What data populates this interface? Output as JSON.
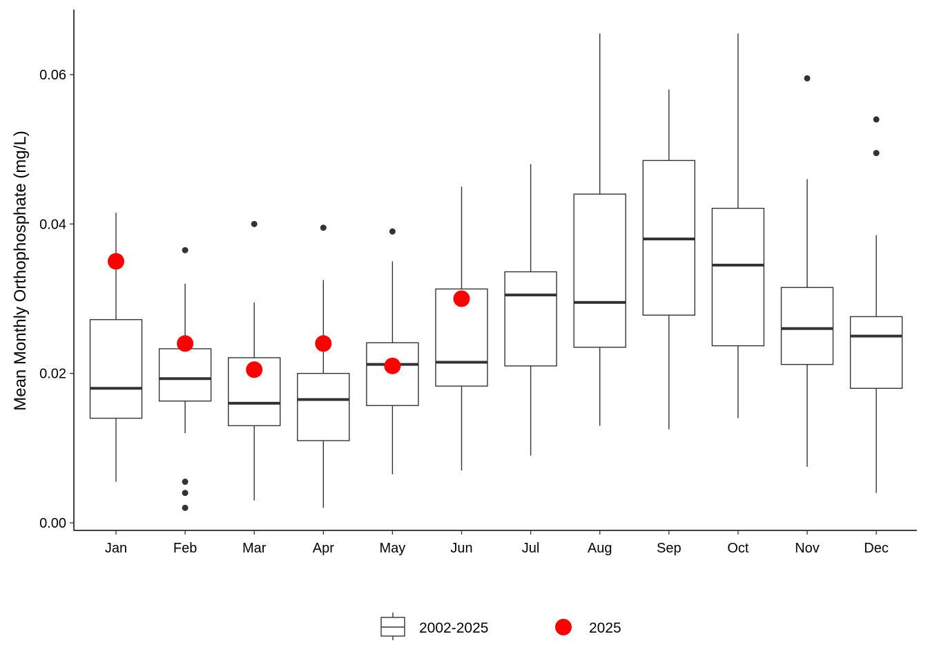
{
  "chart_data": {
    "type": "boxplot",
    "title": "",
    "xlabel": "",
    "ylabel": "Mean Monthly Orthophosphate (mg/L)",
    "ylim": [
      -0.0012,
      0.069
    ],
    "yticks": [
      0.0,
      0.02,
      0.04,
      0.06
    ],
    "ytick_labels": [
      "0.00",
      "0.02",
      "0.04",
      "0.06"
    ],
    "grid": false,
    "legend": {
      "placement": "bottom",
      "entries": [
        {
          "label": "2002-2025",
          "kind": "box"
        },
        {
          "label": "2025",
          "kind": "point",
          "color": "#ff0000"
        }
      ]
    },
    "colors": {
      "box_stroke": "#333333",
      "outlier": "#333333",
      "highlight": "#ff0000"
    },
    "categories": [
      "Jan",
      "Feb",
      "Mar",
      "Apr",
      "May",
      "Jun",
      "Jul",
      "Aug",
      "Sep",
      "Oct",
      "Nov",
      "Dec"
    ],
    "series": [
      {
        "name": "2002-2025",
        "boxes": [
          {
            "category": "Jan",
            "whisker_low": 0.0055,
            "q1": 0.014,
            "median": 0.018,
            "q3": 0.0272,
            "whisker_high": 0.0415,
            "outliers": []
          },
          {
            "category": "Feb",
            "whisker_low": 0.012,
            "q1": 0.0163,
            "median": 0.0193,
            "q3": 0.0233,
            "whisker_high": 0.032,
            "outliers": [
              0.0365,
              0.0055,
              0.004,
              0.002
            ]
          },
          {
            "category": "Mar",
            "whisker_low": 0.003,
            "q1": 0.013,
            "median": 0.016,
            "q3": 0.0221,
            "whisker_high": 0.0295,
            "outliers": [
              0.04
            ]
          },
          {
            "category": "Apr",
            "whisker_low": 0.002,
            "q1": 0.011,
            "median": 0.0165,
            "q3": 0.02,
            "whisker_high": 0.0325,
            "outliers": [
              0.0395
            ]
          },
          {
            "category": "May",
            "whisker_low": 0.0065,
            "q1": 0.0157,
            "median": 0.0212,
            "q3": 0.0241,
            "whisker_high": 0.035,
            "outliers": [
              0.039
            ]
          },
          {
            "category": "Jun",
            "whisker_low": 0.007,
            "q1": 0.0183,
            "median": 0.0215,
            "q3": 0.0313,
            "whisker_high": 0.045,
            "outliers": []
          },
          {
            "category": "Jul",
            "whisker_low": 0.009,
            "q1": 0.021,
            "median": 0.0305,
            "q3": 0.0336,
            "whisker_high": 0.048,
            "outliers": []
          },
          {
            "category": "Aug",
            "whisker_low": 0.013,
            "q1": 0.0235,
            "median": 0.0295,
            "q3": 0.044,
            "whisker_high": 0.0655,
            "outliers": []
          },
          {
            "category": "Sep",
            "whisker_low": 0.0125,
            "q1": 0.0278,
            "median": 0.038,
            "q3": 0.0485,
            "whisker_high": 0.058,
            "outliers": []
          },
          {
            "category": "Oct",
            "whisker_low": 0.014,
            "q1": 0.0237,
            "median": 0.0345,
            "q3": 0.0421,
            "whisker_high": 0.0655,
            "outliers": []
          },
          {
            "category": "Nov",
            "whisker_low": 0.0075,
            "q1": 0.0212,
            "median": 0.026,
            "q3": 0.0315,
            "whisker_high": 0.046,
            "outliers": [
              0.0595
            ]
          },
          {
            "category": "Dec",
            "whisker_low": 0.004,
            "q1": 0.018,
            "median": 0.025,
            "q3": 0.0276,
            "whisker_high": 0.0385,
            "outliers": [
              0.054,
              0.0495
            ]
          }
        ]
      },
      {
        "name": "2025",
        "points": [
          {
            "category": "Jan",
            "value": 0.035
          },
          {
            "category": "Feb",
            "value": 0.024
          },
          {
            "category": "Mar",
            "value": 0.0205
          },
          {
            "category": "Apr",
            "value": 0.024
          },
          {
            "category": "May",
            "value": 0.021
          },
          {
            "category": "Jun",
            "value": 0.03
          }
        ]
      }
    ]
  }
}
